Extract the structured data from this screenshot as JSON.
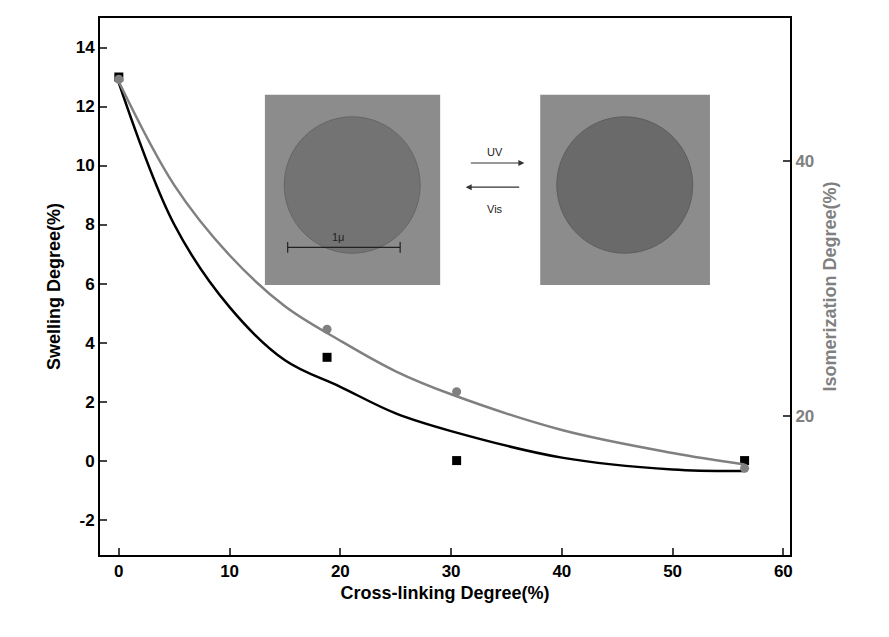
{
  "chart_data": {
    "type": "scatter",
    "x_label": "Cross-linking Degree(%)",
    "y_label": "Swelling Degree(%)",
    "y2_label": "Isomerization Degree(%)",
    "xlim": [
      -1.7,
      60.6
    ],
    "xticks": [
      0,
      10,
      20,
      30,
      40,
      50,
      60
    ],
    "ylim": [
      -3.2,
      15
    ],
    "yticks": [
      -2,
      0,
      2,
      4,
      6,
      8,
      10,
      12,
      14
    ],
    "y2lim": [
      9.1,
      51.2
    ],
    "y2ticks": [
      20,
      40
    ],
    "grid": false,
    "series": [
      {
        "type": "scatter",
        "marker": "square",
        "color": "#000000",
        "x": [
          0,
          18.8,
          30.5,
          56.5
        ],
        "values": [
          13.0,
          3.5,
          0.0,
          0.0
        ]
      },
      {
        "type": "scatter",
        "marker": "circle",
        "color": "#808080",
        "axis": "y2",
        "x": [
          0,
          18.8,
          30.5,
          56.5
        ],
        "values": [
          46.4,
          26.8,
          21.9,
          15.9
        ]
      },
      {
        "type": "line",
        "line_style": "solid",
        "color": "#000000",
        "x": [
          0,
          5,
          10,
          15,
          20,
          25,
          30,
          40,
          50,
          56.5
        ],
        "values": [
          12.8,
          8.0,
          5.2,
          3.4,
          2.5,
          1.6,
          1.0,
          0.1,
          -0.3,
          -0.35
        ]
      },
      {
        "type": "line",
        "line_style": "solid",
        "color": "#808080",
        "axis": "y2",
        "x": [
          0,
          5,
          10,
          15,
          20,
          25,
          30,
          40,
          50,
          56.5
        ],
        "values": [
          46.2,
          38.1,
          32.6,
          28.6,
          25.9,
          23.5,
          21.7,
          18.9,
          17.1,
          16.2
        ]
      }
    ],
    "annotations": [
      "UV",
      "Vis",
      "1μ"
    ]
  }
}
